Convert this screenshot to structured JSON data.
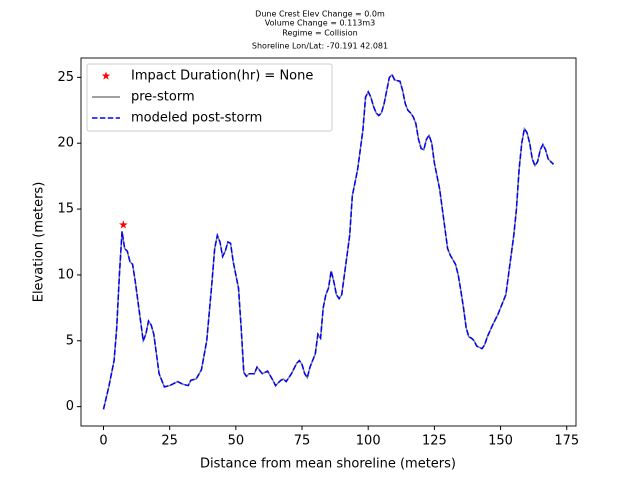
{
  "chart_data": {
    "type": "line",
    "title_lines": [
      "Dune Crest Elev Change = 0.0m",
      "Volume Change = 0.113m3",
      "Regime = Collision",
      "Shoreline Lon/Lat: -70.191 42.081"
    ],
    "xlabel": "Distance from mean shoreline (meters)",
    "ylabel": "Elevation (meters)",
    "xlim": [
      -8.5,
      178.5
    ],
    "ylim": [
      -1.47,
      26.47
    ],
    "xticks": [
      0,
      25,
      50,
      75,
      100,
      125,
      150,
      175
    ],
    "yticks": [
      0,
      5,
      10,
      15,
      20,
      25
    ],
    "legend": "upper left",
    "x": [
      0,
      2,
      4,
      5,
      6,
      7,
      8,
      9,
      10,
      11,
      12,
      13,
      14,
      15,
      16,
      17,
      18,
      19,
      20,
      21,
      22,
      23,
      25,
      27,
      28,
      30,
      32,
      33,
      35,
      37,
      39,
      41,
      42,
      43,
      44,
      45,
      46,
      47,
      48,
      49,
      51,
      52,
      53,
      54,
      55,
      57,
      58,
      60,
      62,
      64,
      65,
      67,
      68,
      69,
      71,
      73,
      74,
      75,
      76,
      77,
      78,
      80,
      81,
      82,
      83,
      84,
      85,
      86,
      87,
      88,
      89,
      90,
      91,
      93,
      94,
      96,
      98,
      99,
      100,
      101,
      102,
      103,
      104,
      105,
      106,
      107,
      108,
      109,
      110,
      112,
      113,
      114,
      115,
      116,
      117,
      118,
      119,
      120,
      121,
      122,
      123,
      124,
      125,
      126,
      127,
      128,
      129,
      130,
      131,
      133,
      134,
      135,
      136,
      137,
      138,
      139,
      140,
      141,
      142,
      143,
      144,
      145,
      147,
      149,
      150,
      152,
      153,
      155,
      156,
      157,
      158,
      159,
      160,
      161,
      162,
      163,
      164,
      165,
      166,
      167,
      168,
      169,
      170
    ],
    "series": [
      {
        "name": "pre-storm",
        "color": "#808080",
        "dash": false,
        "values": [
          -0.2,
          1.5,
          3.5,
          6,
          10,
          13.3,
          12,
          11.8,
          11,
          10.8,
          9.5,
          8,
          6.5,
          5,
          5.5,
          6.5,
          6.2,
          5.5,
          4,
          2.5,
          2,
          1.5,
          1.6,
          1.8,
          1.9,
          1.7,
          1.6,
          2,
          2.1,
          2.8,
          5,
          9.5,
          12,
          13,
          12.5,
          11.4,
          11.8,
          12.5,
          12.4,
          11,
          9,
          6,
          2.6,
          2.3,
          2.5,
          2.5,
          3,
          2.5,
          2.7,
          2,
          1.6,
          2,
          2.1,
          1.9,
          2.5,
          3.3,
          3.5,
          3.2,
          2.5,
          2.2,
          3,
          4,
          5.5,
          5.2,
          7.5,
          8.5,
          9,
          10.3,
          9.5,
          8.5,
          8.2,
          8.5,
          10,
          13,
          16,
          18,
          21,
          23.5,
          23.9,
          23.5,
          22.8,
          22.3,
          22.1,
          22.3,
          23,
          24,
          25,
          25.2,
          24.8,
          24.7,
          24,
          23,
          22.5,
          22.3,
          22,
          21.5,
          20.3,
          19.6,
          19.5,
          20.3,
          20.6,
          20,
          18.5,
          17.5,
          16.5,
          15,
          13.5,
          12,
          11.5,
          10.8,
          10,
          8.8,
          7.5,
          6,
          5.3,
          5.2,
          5,
          4.6,
          4.5,
          4.4,
          4.7,
          5.3,
          6.2,
          7,
          7.5,
          8.5,
          10,
          13,
          15,
          18,
          20,
          21.1,
          20.8,
          20,
          18.8,
          18.3,
          18.6,
          19.5,
          19.9,
          19.5,
          18.8,
          18.6,
          18.4
        ]
      },
      {
        "name": "modeled post-storm",
        "color": "#0000ff",
        "dash": true,
        "values": [
          -0.2,
          1.5,
          3.5,
          6,
          10,
          13.3,
          12,
          11.8,
          11,
          10.8,
          9.5,
          8,
          6.5,
          5,
          5.5,
          6.5,
          6.2,
          5.5,
          4,
          2.5,
          2,
          1.5,
          1.6,
          1.8,
          1.9,
          1.7,
          1.6,
          2,
          2.1,
          2.8,
          5,
          9.5,
          12,
          13,
          12.5,
          11.4,
          11.8,
          12.5,
          12.4,
          11,
          9,
          6,
          2.6,
          2.3,
          2.5,
          2.5,
          3,
          2.5,
          2.7,
          2,
          1.6,
          2,
          2.1,
          1.9,
          2.5,
          3.3,
          3.5,
          3.2,
          2.5,
          2.2,
          3,
          4,
          5.5,
          5.2,
          7.5,
          8.5,
          9,
          10.3,
          9.5,
          8.5,
          8.2,
          8.5,
          10,
          13,
          16,
          18,
          21,
          23.5,
          23.9,
          23.5,
          22.8,
          22.3,
          22.1,
          22.3,
          23,
          24,
          25,
          25.2,
          24.8,
          24.7,
          24,
          23,
          22.5,
          22.3,
          22,
          21.5,
          20.3,
          19.6,
          19.5,
          20.3,
          20.6,
          20,
          18.5,
          17.5,
          16.5,
          15,
          13.5,
          12,
          11.5,
          10.8,
          10,
          8.8,
          7.5,
          6,
          5.3,
          5.2,
          5,
          4.6,
          4.5,
          4.4,
          4.7,
          5.3,
          6.2,
          7,
          7.5,
          8.5,
          10,
          13,
          15,
          18,
          20,
          21.1,
          20.8,
          20,
          18.8,
          18.3,
          18.6,
          19.5,
          19.9,
          19.5,
          18.8,
          18.6,
          18.4
        ]
      }
    ],
    "marker": {
      "name": "Impact Duration(hr) = None",
      "color": "#ff0000",
      "x": [
        7.5
      ],
      "values": [
        13.8
      ]
    }
  }
}
